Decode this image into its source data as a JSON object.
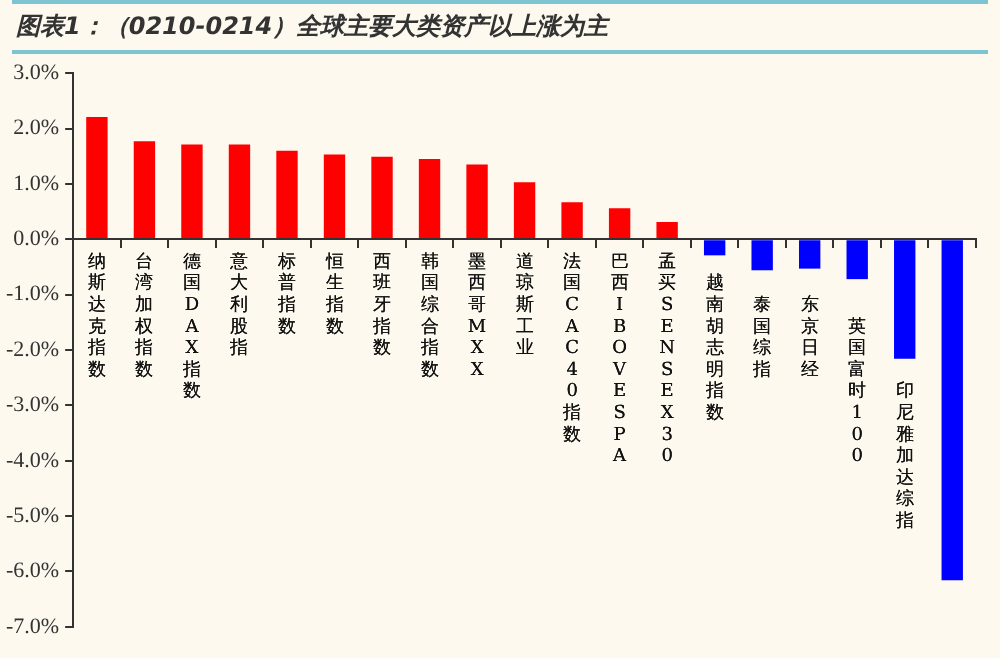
{
  "chart_data": {
    "type": "bar",
    "title": "图表1：（0210-0214）全球主要大类资产以上涨为主",
    "categories": [
      "纳斯达克指数",
      "台湾加权指数",
      "德国DAX指数",
      "意大利股指",
      "标普指数",
      "恒生指数",
      "西班牙指数",
      "韩国综合指数",
      "墨西哥MXX",
      "道琼斯工业",
      "法国CAC40指数",
      "巴西IBOVESPA",
      "孟买SENSEX30",
      "越南胡志明指数",
      "泰国综指",
      "东京日经",
      "英国富时100",
      "印尼雅加达综指",
      null
    ],
    "values": [
      2.21,
      1.77,
      1.71,
      1.71,
      1.6,
      1.53,
      1.49,
      1.45,
      1.35,
      1.03,
      0.67,
      0.56,
      0.31,
      -0.29,
      -0.56,
      -0.53,
      -0.72,
      -2.16,
      -6.16
    ],
    "colors": [
      "#ff0000",
      "#ff0000",
      "#ff0000",
      "#ff0000",
      "#ff0000",
      "#ff0000",
      "#ff0000",
      "#ff0000",
      "#ff0000",
      "#ff0000",
      "#ff0000",
      "#ff0000",
      "#ff0000",
      "#0000ff",
      "#0000ff",
      "#0000ff",
      "#0000ff",
      "#0000ff",
      "#0000ff"
    ],
    "ylim": [
      -7,
      3
    ],
    "yticks": [
      {
        "value": -7,
        "label": "-7.0%"
      },
      {
        "value": -6,
        "label": "-6.0%"
      },
      {
        "value": -5,
        "label": "-5.0%"
      },
      {
        "value": -4,
        "label": "-4.0%"
      },
      {
        "value": -3,
        "label": "-3.0%"
      },
      {
        "value": -2,
        "label": "-2.0%"
      },
      {
        "value": -1,
        "label": "-1.0%"
      },
      {
        "value": 0,
        "label": "0.0%"
      },
      {
        "value": 1,
        "label": "1.0%"
      },
      {
        "value": 2,
        "label": "2.0%"
      },
      {
        "value": 3,
        "label": "3.0%"
      }
    ],
    "grid": false,
    "legend": false
  }
}
